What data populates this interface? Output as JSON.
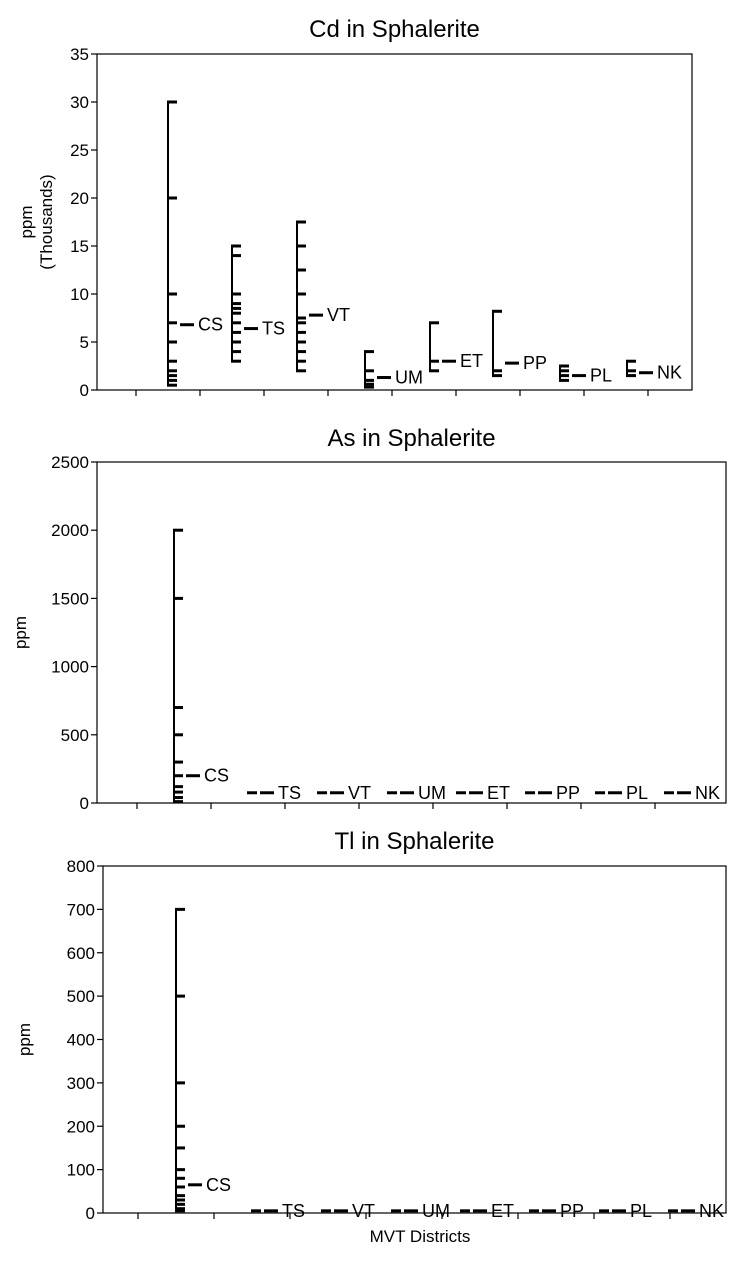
{
  "figure": {
    "x_axis_label": "MVT Districts"
  },
  "chart_data": [
    {
      "type": "scatter",
      "title": "Cd in Sphalerite",
      "ylabel_lines": [
        "ppm",
        "(Thousands)"
      ],
      "ylim": [
        0,
        35
      ],
      "yticks": [
        0,
        5,
        10,
        15,
        20,
        25,
        30,
        35
      ],
      "districts": [
        {
          "name": "CS",
          "values": [
            0.5,
            1.0,
            1.5,
            2.0,
            3.0,
            5.0,
            7.0,
            10.0,
            20.0,
            30.0
          ],
          "median": 6.8
        },
        {
          "name": "TS",
          "values": [
            3.0,
            4.0,
            5.0,
            6.0,
            7.0,
            8.0,
            8.5,
            9.0,
            10.0,
            14.0,
            15.0
          ],
          "median": 6.4
        },
        {
          "name": "VT",
          "values": [
            2.0,
            3.0,
            4.0,
            5.0,
            6.0,
            7.0,
            7.5,
            10.0,
            12.5,
            15.0,
            17.5
          ],
          "median": 7.8
        },
        {
          "name": "UM",
          "values": [
            0.3,
            0.6,
            1.0,
            2.0,
            4.0
          ],
          "median": 1.3
        },
        {
          "name": "ET",
          "values": [
            2.0,
            3.0,
            7.0
          ],
          "median": 3.0
        },
        {
          "name": "PP",
          "values": [
            1.5,
            2.0,
            8.2
          ],
          "median": 2.8
        },
        {
          "name": "PL",
          "values": [
            1.0,
            1.5,
            2.0,
            2.5
          ],
          "median": 1.5
        },
        {
          "name": "NK",
          "values": [
            1.5,
            2.0,
            3.0
          ],
          "median": 1.8
        }
      ]
    },
    {
      "type": "scatter",
      "title": "As in Sphalerite",
      "ylabel_lines": [
        "ppm"
      ],
      "ylim": [
        0,
        2500
      ],
      "yticks": [
        0,
        500,
        1000,
        1500,
        2000,
        2500
      ],
      "districts": [
        {
          "name": "CS",
          "values": [
            10,
            40,
            80,
            120,
            200,
            300,
            500,
            700,
            1500,
            2000
          ],
          "median": 200
        },
        {
          "name": "TS",
          "values": [
            75
          ],
          "median": 75
        },
        {
          "name": "VT",
          "values": [
            75
          ],
          "median": 75
        },
        {
          "name": "UM",
          "values": [
            75
          ],
          "median": 75
        },
        {
          "name": "ET",
          "values": [
            75
          ],
          "median": 75
        },
        {
          "name": "PP",
          "values": [
            75
          ],
          "median": 75
        },
        {
          "name": "PL",
          "values": [
            75
          ],
          "median": 75
        },
        {
          "name": "NK",
          "values": [
            75
          ],
          "median": 75
        }
      ]
    },
    {
      "type": "scatter",
      "title": "Tl in Sphalerite",
      "ylabel_lines": [
        "ppm"
      ],
      "ylim": [
        0,
        800
      ],
      "yticks": [
        0,
        100,
        200,
        300,
        400,
        500,
        600,
        700,
        800
      ],
      "districts": [
        {
          "name": "CS",
          "values": [
            5,
            10,
            20,
            30,
            40,
            60,
            80,
            100,
            150,
            200,
            300,
            500,
            700
          ],
          "median": 65
        },
        {
          "name": "TS",
          "values": [
            5
          ],
          "median": 5
        },
        {
          "name": "VT",
          "values": [
            5
          ],
          "median": 5
        },
        {
          "name": "UM",
          "values": [
            5
          ],
          "median": 5
        },
        {
          "name": "ET",
          "values": [
            5
          ],
          "median": 5
        },
        {
          "name": "PP",
          "values": [
            5
          ],
          "median": 5
        },
        {
          "name": "PL",
          "values": [
            5
          ],
          "median": 5
        },
        {
          "name": "NK",
          "values": [
            5
          ],
          "median": 5
        }
      ]
    }
  ]
}
